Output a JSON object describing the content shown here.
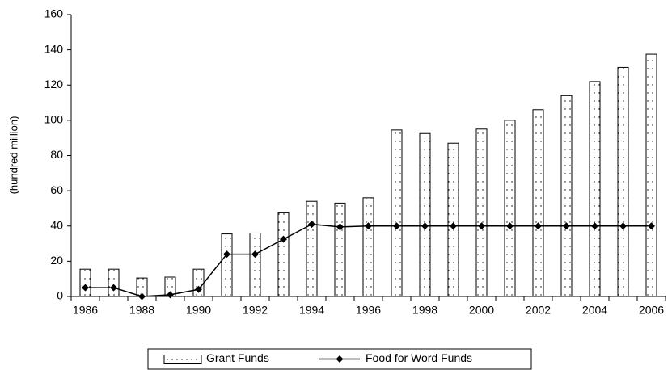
{
  "chart_data": {
    "type": "bar-line",
    "y_axis_label": "(hundred million)",
    "categories": [
      "1986",
      null,
      "1988",
      null,
      "1990",
      null,
      "1992",
      null,
      "1994",
      null,
      "1996",
      null,
      "1998",
      null,
      "2000",
      null,
      "2002",
      null,
      "2004",
      null,
      "2006"
    ],
    "series": [
      {
        "name": "Grant Funds",
        "type": "bar",
        "color": "#000000",
        "values": [
          15.5,
          15.5,
          10.5,
          11,
          15.5,
          35.5,
          36,
          47.5,
          54,
          53,
          56,
          94.5,
          92.5,
          87,
          95,
          100,
          106,
          114,
          122,
          130,
          137.5
        ]
      },
      {
        "name": "Food for Word Funds",
        "type": "line",
        "color": "#000000",
        "values": [
          5,
          5,
          0,
          1,
          4,
          24,
          24,
          32.5,
          41,
          39.5,
          40,
          40,
          40,
          40,
          40,
          40,
          40,
          40,
          40,
          40,
          40
        ]
      }
    ],
    "ylim": [
      0,
      160
    ],
    "yticks": [
      0,
      20,
      40,
      60,
      80,
      100,
      120,
      140,
      160
    ],
    "legend": "bottom"
  }
}
